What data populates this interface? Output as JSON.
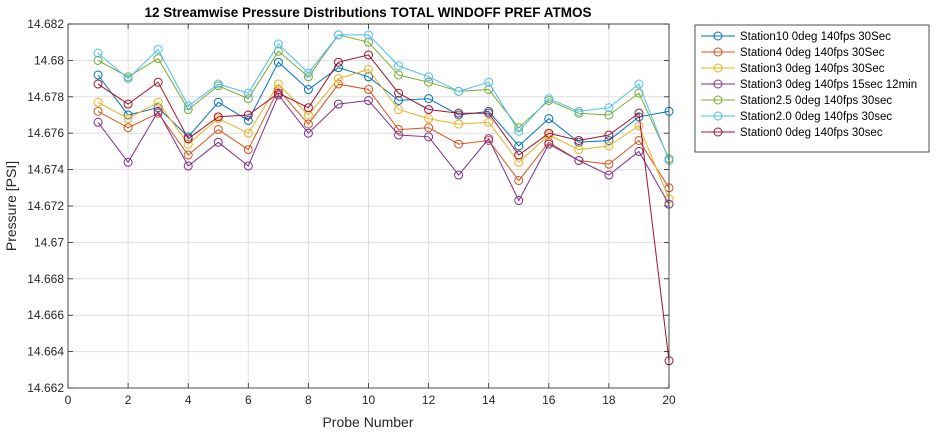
{
  "chart_data": {
    "type": "line",
    "title": "12 Streamwise Pressure Distributions TOTAL WINDOFF PREF ATMOS",
    "xlabel": "Probe Number",
    "ylabel": "Pressure [PSI]",
    "xlim": [
      0,
      20
    ],
    "ylim": [
      14.662,
      14.682
    ],
    "xticks": [
      0,
      2,
      4,
      6,
      8,
      10,
      12,
      14,
      16,
      18,
      20
    ],
    "yticks": [
      14.662,
      14.664,
      14.666,
      14.668,
      14.67,
      14.672,
      14.674,
      14.676,
      14.678,
      14.68,
      14.682
    ],
    "xtick_labels": [
      "0",
      "2",
      "4",
      "6",
      "8",
      "10",
      "12",
      "14",
      "16",
      "18",
      "20"
    ],
    "ytick_labels": [
      "14.662",
      "14.664",
      "14.666",
      "14.668",
      "14.67",
      "14.672",
      "14.674",
      "14.676",
      "14.678",
      "14.68",
      "14.682"
    ],
    "grid": true,
    "marker": "circle",
    "legend_position": "outside-top-right",
    "x": [
      1,
      2,
      3,
      4,
      5,
      6,
      7,
      8,
      9,
      10,
      11,
      12,
      13,
      14,
      15,
      16,
      17,
      18,
      19,
      20
    ],
    "series": [
      {
        "name": "Station10 0deg 140fps 30Sec",
        "color": "#0072BD",
        "values": [
          14.6792,
          14.677,
          14.6774,
          14.6758,
          14.6777,
          14.6767,
          14.6799,
          14.6784,
          14.6796,
          14.6791,
          14.6778,
          14.6779,
          14.677,
          14.6772,
          14.6753,
          14.6768,
          14.6755,
          14.6756,
          14.6769,
          14.6772
        ]
      },
      {
        "name": "Station4 0deg 140fps 30Sec",
        "color": "#D95319",
        "values": [
          14.6772,
          14.6763,
          14.6771,
          14.6748,
          14.6762,
          14.6751,
          14.6784,
          14.6765,
          14.6787,
          14.6784,
          14.6762,
          14.6763,
          14.6754,
          14.6756,
          14.6734,
          14.6755,
          14.6745,
          14.6743,
          14.6756,
          14.673
        ]
      },
      {
        "name": "Station3 0deg 140fps 30Sec",
        "color": "#EDB120",
        "values": [
          14.6777,
          14.6768,
          14.6777,
          14.6754,
          14.6768,
          14.676,
          14.6787,
          14.677,
          14.679,
          14.6795,
          14.6773,
          14.6768,
          14.6765,
          14.6766,
          14.6744,
          14.6759,
          14.6751,
          14.6753,
          14.6764,
          14.6724
        ]
      },
      {
        "name": "Station3 0deg 140fps 15sec 12min",
        "color": "#7E2F8E",
        "values": [
          14.6766,
          14.6744,
          14.6772,
          14.6742,
          14.6755,
          14.6742,
          14.6781,
          14.676,
          14.6776,
          14.6778,
          14.6759,
          14.6758,
          14.6737,
          14.6757,
          14.6723,
          14.6754,
          14.6745,
          14.6737,
          14.675,
          14.6721
        ]
      },
      {
        "name": "Station2.5 0deg 140fps 30sec",
        "color": "#77AC30",
        "values": [
          14.68,
          14.6791,
          14.6801,
          14.6773,
          14.6786,
          14.6779,
          14.6805,
          14.6791,
          14.6814,
          14.681,
          14.6792,
          14.6788,
          14.6783,
          14.6784,
          14.6763,
          14.6778,
          14.6771,
          14.677,
          14.6782,
          14.6746
        ]
      },
      {
        "name": "Station2.0 0deg 140fps 30sec",
        "color": "#4DBEEE",
        "values": [
          14.6804,
          14.679,
          14.6806,
          14.6775,
          14.6787,
          14.6782,
          14.6809,
          14.6793,
          14.6814,
          14.6814,
          14.6797,
          14.6791,
          14.6783,
          14.6788,
          14.6761,
          14.6779,
          14.6772,
          14.6774,
          14.6787,
          14.6745
        ]
      },
      {
        "name": "Station0 0deg 140fps 30sec",
        "color": "#A2142F",
        "values": [
          14.6787,
          14.6776,
          14.6788,
          14.6757,
          14.6769,
          14.677,
          14.6782,
          14.6774,
          14.6799,
          14.6803,
          14.6782,
          14.6773,
          14.6771,
          14.6771,
          14.6748,
          14.676,
          14.6756,
          14.6759,
          14.6771,
          14.6635
        ]
      }
    ]
  }
}
